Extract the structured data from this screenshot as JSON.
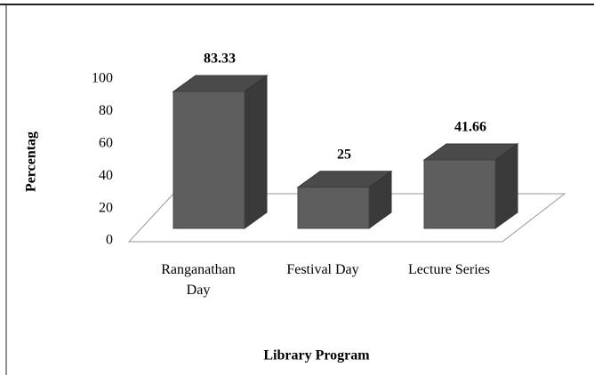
{
  "chart_data": {
    "type": "bar3d",
    "categories": [
      "Ranganathan Day",
      "Festival Day",
      "Lecture Series"
    ],
    "values": [
      83.33,
      25,
      41.66
    ],
    "color": "#5e5e5e",
    "ylim": [
      0,
      100
    ],
    "yticks": [
      0,
      20,
      40,
      60,
      80,
      100
    ],
    "xlabel": "Library Program",
    "ylabel": "Percentag"
  }
}
